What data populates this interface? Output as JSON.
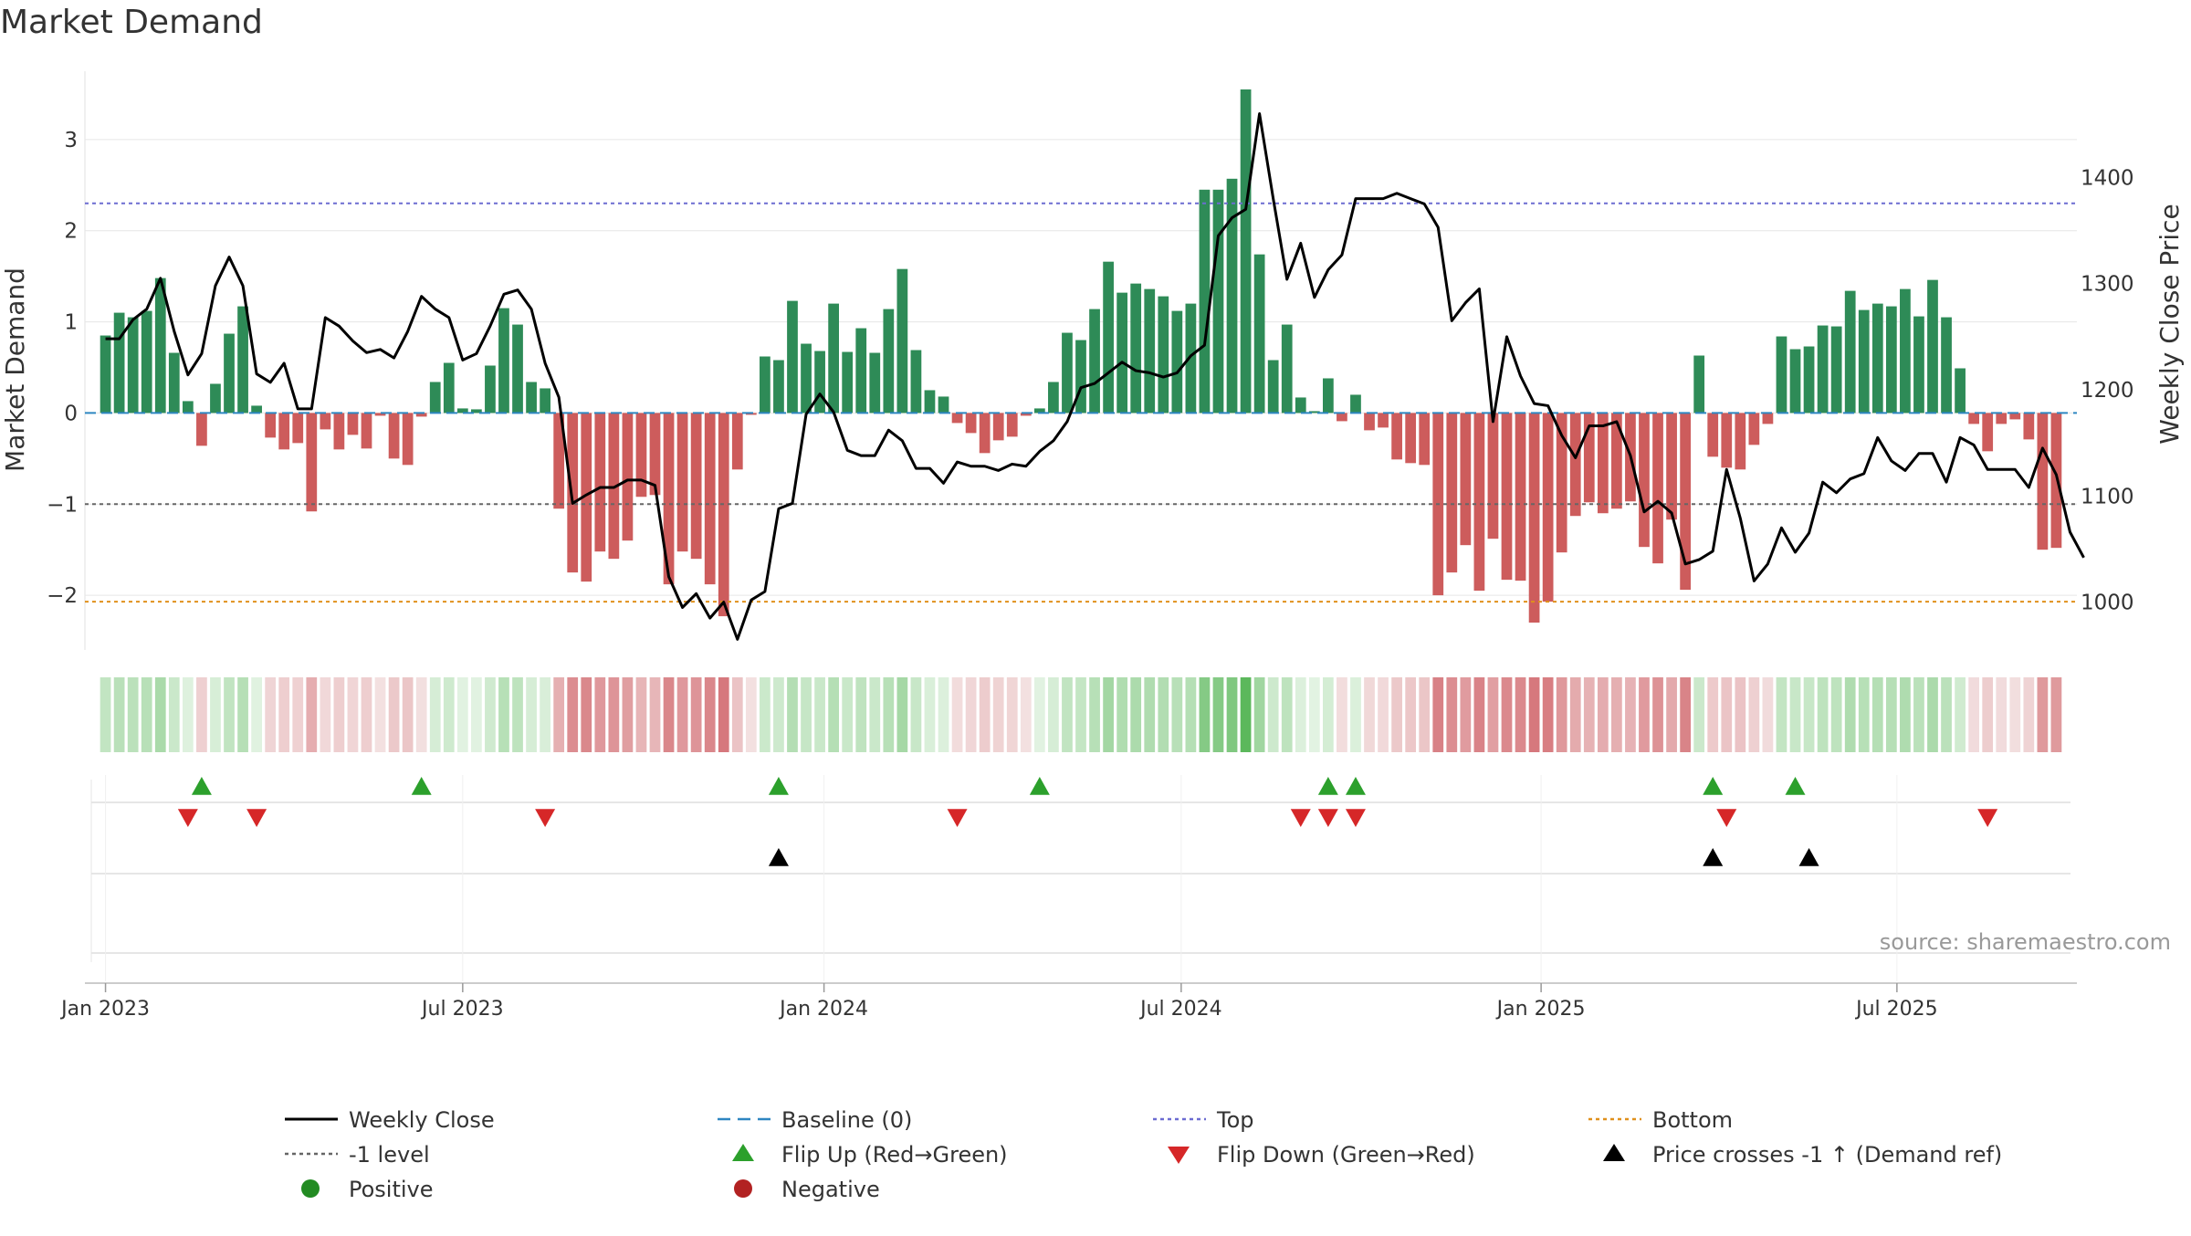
{
  "chart_data": {
    "type": "bar+line",
    "title": "Market Demand",
    "ylabel_left": "Market Demand",
    "ylabel_right": "Weekly Close Price",
    "ylim_left": [
      -2.6,
      3.75
    ],
    "ylim_right": [
      955,
      1500
    ],
    "yticks_left": [
      {
        "value": 3,
        "label": "3"
      },
      {
        "value": 2,
        "label": "2"
      },
      {
        "value": 1,
        "label": "1"
      },
      {
        "value": 0,
        "label": "0"
      },
      {
        "value": -1,
        "label": "−1"
      },
      {
        "value": -2,
        "label": "−2"
      }
    ],
    "yticks_right": [
      {
        "value": 1400,
        "label": "1400"
      },
      {
        "value": 1300,
        "label": "1300"
      },
      {
        "value": 1200,
        "label": "1200"
      },
      {
        "value": 1100,
        "label": "1100"
      },
      {
        "value": 1000,
        "label": "1000"
      }
    ],
    "x_start_week": -1.5,
    "x_end_week": 143.5,
    "x_ticks": [
      {
        "week": 0,
        "label": "Jan 2023"
      },
      {
        "week": 26,
        "label": "Jul 2023"
      },
      {
        "week": 52.3,
        "label": "Jan 2024"
      },
      {
        "week": 78.3,
        "label": "Jul 2024"
      },
      {
        "week": 104.5,
        "label": "Jan 2025"
      },
      {
        "week": 130.4,
        "label": "Jul 2025"
      }
    ],
    "reference_lines": [
      {
        "name": "Top",
        "value": 2.3,
        "color": "#6c6cd1"
      },
      {
        "name": "-1 level",
        "value": -1,
        "color": "#666666"
      },
      {
        "name": "Bottom",
        "value": -2.07,
        "color": "#e0901c"
      },
      {
        "name": "Baseline (0)",
        "value": 0,
        "color": "#2e86c1"
      }
    ],
    "series": [
      {
        "name": "Market Demand",
        "kind": "bar",
        "values": [
          0.85,
          1.1,
          1.05,
          1.12,
          1.48,
          0.66,
          0.13,
          -0.36,
          0.32,
          0.87,
          1.17,
          0.08,
          -0.27,
          -0.4,
          -0.33,
          -1.08,
          -0.18,
          -0.4,
          -0.24,
          -0.39,
          -0.03,
          -0.5,
          -0.57,
          -0.04,
          0.34,
          0.55,
          0.05,
          0.04,
          0.52,
          1.15,
          0.97,
          0.34,
          0.27,
          -1.05,
          -1.75,
          -1.85,
          -1.52,
          -1.6,
          -1.4,
          -0.92,
          -0.9,
          -1.88,
          -1.52,
          -1.6,
          -1.88,
          -2.23,
          -0.62,
          -0.02,
          0.62,
          0.58,
          1.23,
          0.76,
          0.68,
          1.2,
          0.67,
          0.93,
          0.66,
          1.14,
          1.58,
          0.69,
          0.25,
          0.18,
          -0.11,
          -0.22,
          -0.44,
          -0.3,
          -0.26,
          -0.03,
          0.05,
          0.34,
          0.88,
          0.8,
          1.14,
          1.66,
          1.32,
          1.42,
          1.36,
          1.28,
          1.12,
          1.2,
          2.45,
          2.45,
          2.57,
          3.55,
          1.74,
          0.58,
          0.97,
          0.17,
          0.02,
          0.38,
          -0.09,
          0.2,
          -0.19,
          -0.16,
          -0.51,
          -0.55,
          -0.57,
          -2.0,
          -1.75,
          -1.45,
          -1.95,
          -1.38,
          -1.83,
          -1.84,
          -2.3,
          -2.07,
          -1.53,
          -1.13,
          -0.98,
          -1.1,
          -1.05,
          -0.97,
          -1.47,
          -1.65,
          -1.17,
          -1.94,
          0.63,
          -0.48,
          -0.6,
          -0.62,
          -0.35,
          -0.12,
          0.84,
          0.7,
          0.73,
          0.96,
          0.95,
          1.34,
          1.13,
          1.2,
          1.17,
          1.36,
          1.06,
          1.46,
          1.05,
          0.49,
          -0.12,
          -0.42,
          -0.12,
          -0.07,
          -0.29,
          -1.5,
          -1.48
        ],
        "colors": {
          "positive": "#2e8b57",
          "negative": "#cd5c5c"
        }
      },
      {
        "name": "Weekly Close",
        "kind": "line",
        "axis": "right",
        "color": "#000000",
        "values": [
          1248,
          1248,
          1266,
          1276,
          1305,
          1255,
          1214,
          1234,
          1298,
          1325,
          1298,
          1215,
          1207,
          1225,
          1182,
          1182,
          1268,
          1260,
          1246,
          1235,
          1238,
          1230,
          1255,
          1288,
          1276,
          1268,
          1228,
          1234,
          1260,
          1290,
          1294,
          1276,
          1225,
          1193,
          1093,
          1101,
          1108,
          1108,
          1115,
          1115,
          1110,
          1024,
          995,
          1008,
          985,
          1000,
          965,
          1002,
          1010,
          1088,
          1093,
          1177,
          1196,
          1179,
          1143,
          1138,
          1138,
          1162,
          1152,
          1126,
          1126,
          1112,
          1132,
          1128,
          1128,
          1124,
          1130,
          1128,
          1142,
          1152,
          1170,
          1202,
          1206,
          1216,
          1226,
          1218,
          1216,
          1212,
          1216,
          1232,
          1242,
          1345,
          1362,
          1370,
          1460,
          1380,
          1304,
          1338,
          1287,
          1313,
          1327,
          1380,
          1380,
          1380,
          1385,
          1380,
          1375,
          1353,
          1265,
          1282,
          1295,
          1170,
          1250,
          1213,
          1187,
          1185,
          1157,
          1136,
          1166,
          1166,
          1170,
          1138,
          1085,
          1095,
          1084,
          1036,
          1040,
          1048,
          1125,
          1079,
          1020,
          1036,
          1070,
          1047,
          1065,
          1113,
          1103,
          1116,
          1121,
          1155,
          1133,
          1124,
          1140,
          1140,
          1113,
          1155,
          1148,
          1125,
          1125,
          1125,
          1108,
          1145,
          1120,
          1066,
          1042
        ]
      }
    ],
    "heat_strip": {
      "name": "Demand heat strip",
      "scale": {
        "strong_positive": "#5cb85c",
        "neutral": "#f0f0f0",
        "strong_negative": "#d6787d"
      }
    },
    "events": {
      "flip_up_weeks": [
        7,
        23,
        49,
        68,
        89,
        91,
        117,
        123
      ],
      "flip_down_weeks": [
        6,
        11,
        32,
        62,
        87,
        89,
        91,
        118,
        137
      ],
      "price_cross_weeks": [
        49,
        117,
        124
      ]
    },
    "legend": {
      "placement": "bottom",
      "items": [
        {
          "label": "Weekly Close",
          "symbol": "line",
          "color": "#000000"
        },
        {
          "label": "Baseline (0)",
          "symbol": "dash",
          "color": "#2e86c1"
        },
        {
          "label": "Top",
          "symbol": "dot",
          "color": "#6c6cd1"
        },
        {
          "label": "Bottom",
          "symbol": "dot",
          "color": "#e0901c"
        },
        {
          "label": "-1 level",
          "symbol": "dot",
          "color": "#666666"
        },
        {
          "label": "Flip Up (Red→Green)",
          "symbol": "triangle-up",
          "color": "#2ca02c"
        },
        {
          "label": "Flip Down (Green→Red)",
          "symbol": "triangle-down",
          "color": "#d62728"
        },
        {
          "label": "Price crosses -1 ↑ (Demand ref)",
          "symbol": "triangle-up",
          "color": "#000000"
        },
        {
          "label": "Positive",
          "symbol": "circle",
          "color": "#228b22"
        },
        {
          "label": "Negative",
          "symbol": "circle",
          "color": "#b22222"
        }
      ]
    },
    "source": "source: sharemaestro.com"
  }
}
